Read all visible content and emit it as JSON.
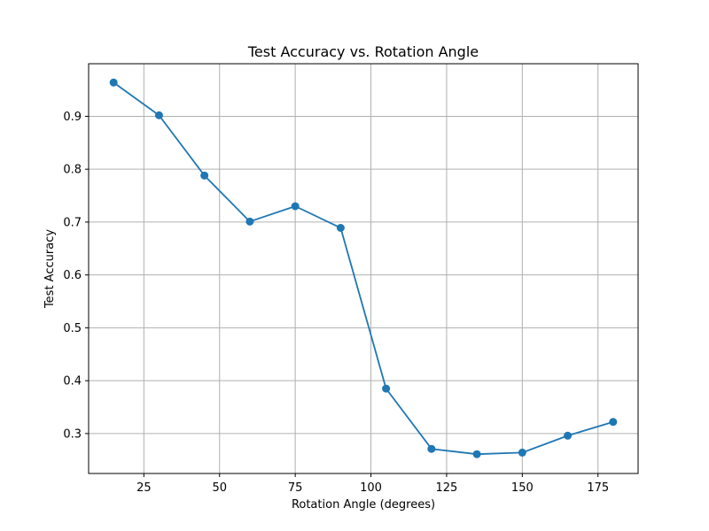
{
  "chart_data": {
    "type": "line",
    "title": "Test Accuracy vs. Rotation Angle",
    "xlabel": "Rotation Angle (degrees)",
    "ylabel": "Test Accuracy",
    "xlim": [
      6.75,
      188.25
    ],
    "ylim": [
      0.2245,
      0.9995
    ],
    "x_ticks": [
      25,
      50,
      75,
      100,
      125,
      150,
      175
    ],
    "y_ticks": [
      0.3,
      0.4,
      0.5,
      0.6,
      0.7,
      0.8,
      0.9
    ],
    "grid": true,
    "series": [
      {
        "x": [
          15,
          30,
          45,
          60,
          75,
          90,
          105,
          120,
          135,
          150,
          165,
          180
        ],
        "values": [
          0.964,
          0.902,
          0.788,
          0.701,
          0.73,
          0.689,
          0.385,
          0.271,
          0.261,
          0.264,
          0.296,
          0.322
        ],
        "color": "#1f77b4",
        "marker": "circle"
      }
    ]
  }
}
